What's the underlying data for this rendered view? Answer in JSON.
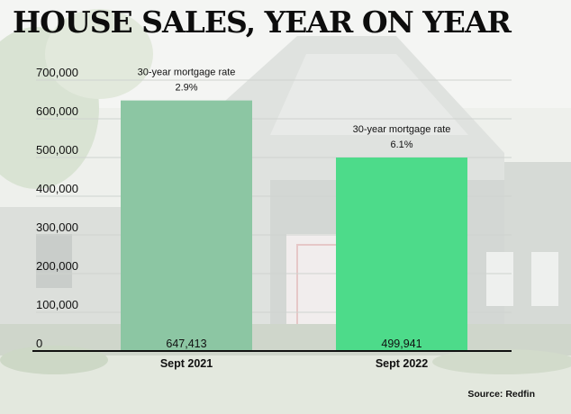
{
  "title": "HOUSE SALES, YEAR ON YEAR",
  "source": "Source: Redfin",
  "colors": {
    "bar_2021": "#8cc6a3",
    "bar_2022": "#4ddb8a",
    "axis": "#111111",
    "gridline": "#cfd3cf"
  },
  "chart_data": {
    "type": "bar",
    "categories": [
      "Sept 2021",
      "Sept 2022"
    ],
    "values": [
      647413,
      499941
    ],
    "value_labels": [
      "647,413",
      "499,941"
    ],
    "annotations": [
      {
        "label": "30-year mortgage rate",
        "value": "2.9%"
      },
      {
        "label": "30-year mortgage rate",
        "value": "6.1%"
      }
    ],
    "y_ticks": [
      0,
      100000,
      200000,
      300000,
      400000,
      500000,
      600000,
      700000
    ],
    "y_tick_labels": [
      "0",
      "100,000",
      "200,000",
      "300,000",
      "400,000",
      "500,000",
      "600,000",
      "700,000"
    ],
    "ylim": [
      0,
      700000
    ],
    "grid": true,
    "title": "HOUSE SALES, YEAR ON YEAR",
    "xlabel": "",
    "ylabel": ""
  }
}
